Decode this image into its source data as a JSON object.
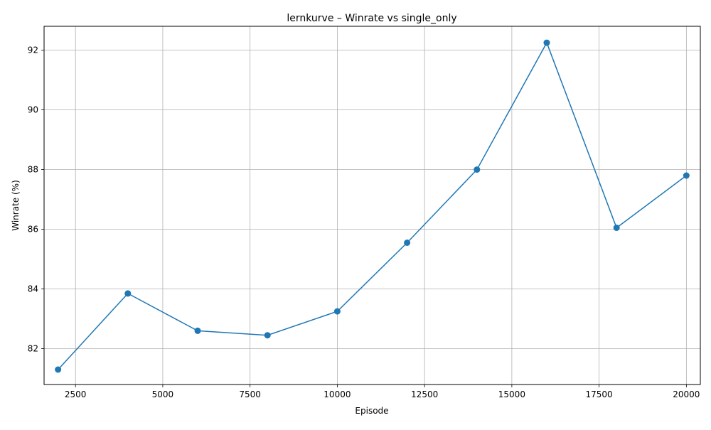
{
  "chart_data": {
    "type": "line",
    "title": "lernkurve – Winrate vs single_only",
    "xlabel": "Episode",
    "ylabel": "Winrate (%)",
    "xlim": [
      1600,
      20400
    ],
    "ylim": [
      80.8,
      92.8
    ],
    "xticks": [
      2500,
      5000,
      7500,
      10000,
      12500,
      15000,
      17500,
      20000
    ],
    "yticks": [
      82,
      84,
      86,
      88,
      90,
      92
    ],
    "grid": true,
    "marker": "circle",
    "series": [
      {
        "color": "#1f77b4",
        "x": [
          2000,
          4000,
          6000,
          8000,
          10000,
          12000,
          14000,
          16000,
          18000,
          20000
        ],
        "y": [
          81.3,
          83.85,
          82.6,
          82.45,
          83.25,
          85.55,
          88.0,
          92.25,
          86.05,
          87.8
        ]
      }
    ]
  }
}
